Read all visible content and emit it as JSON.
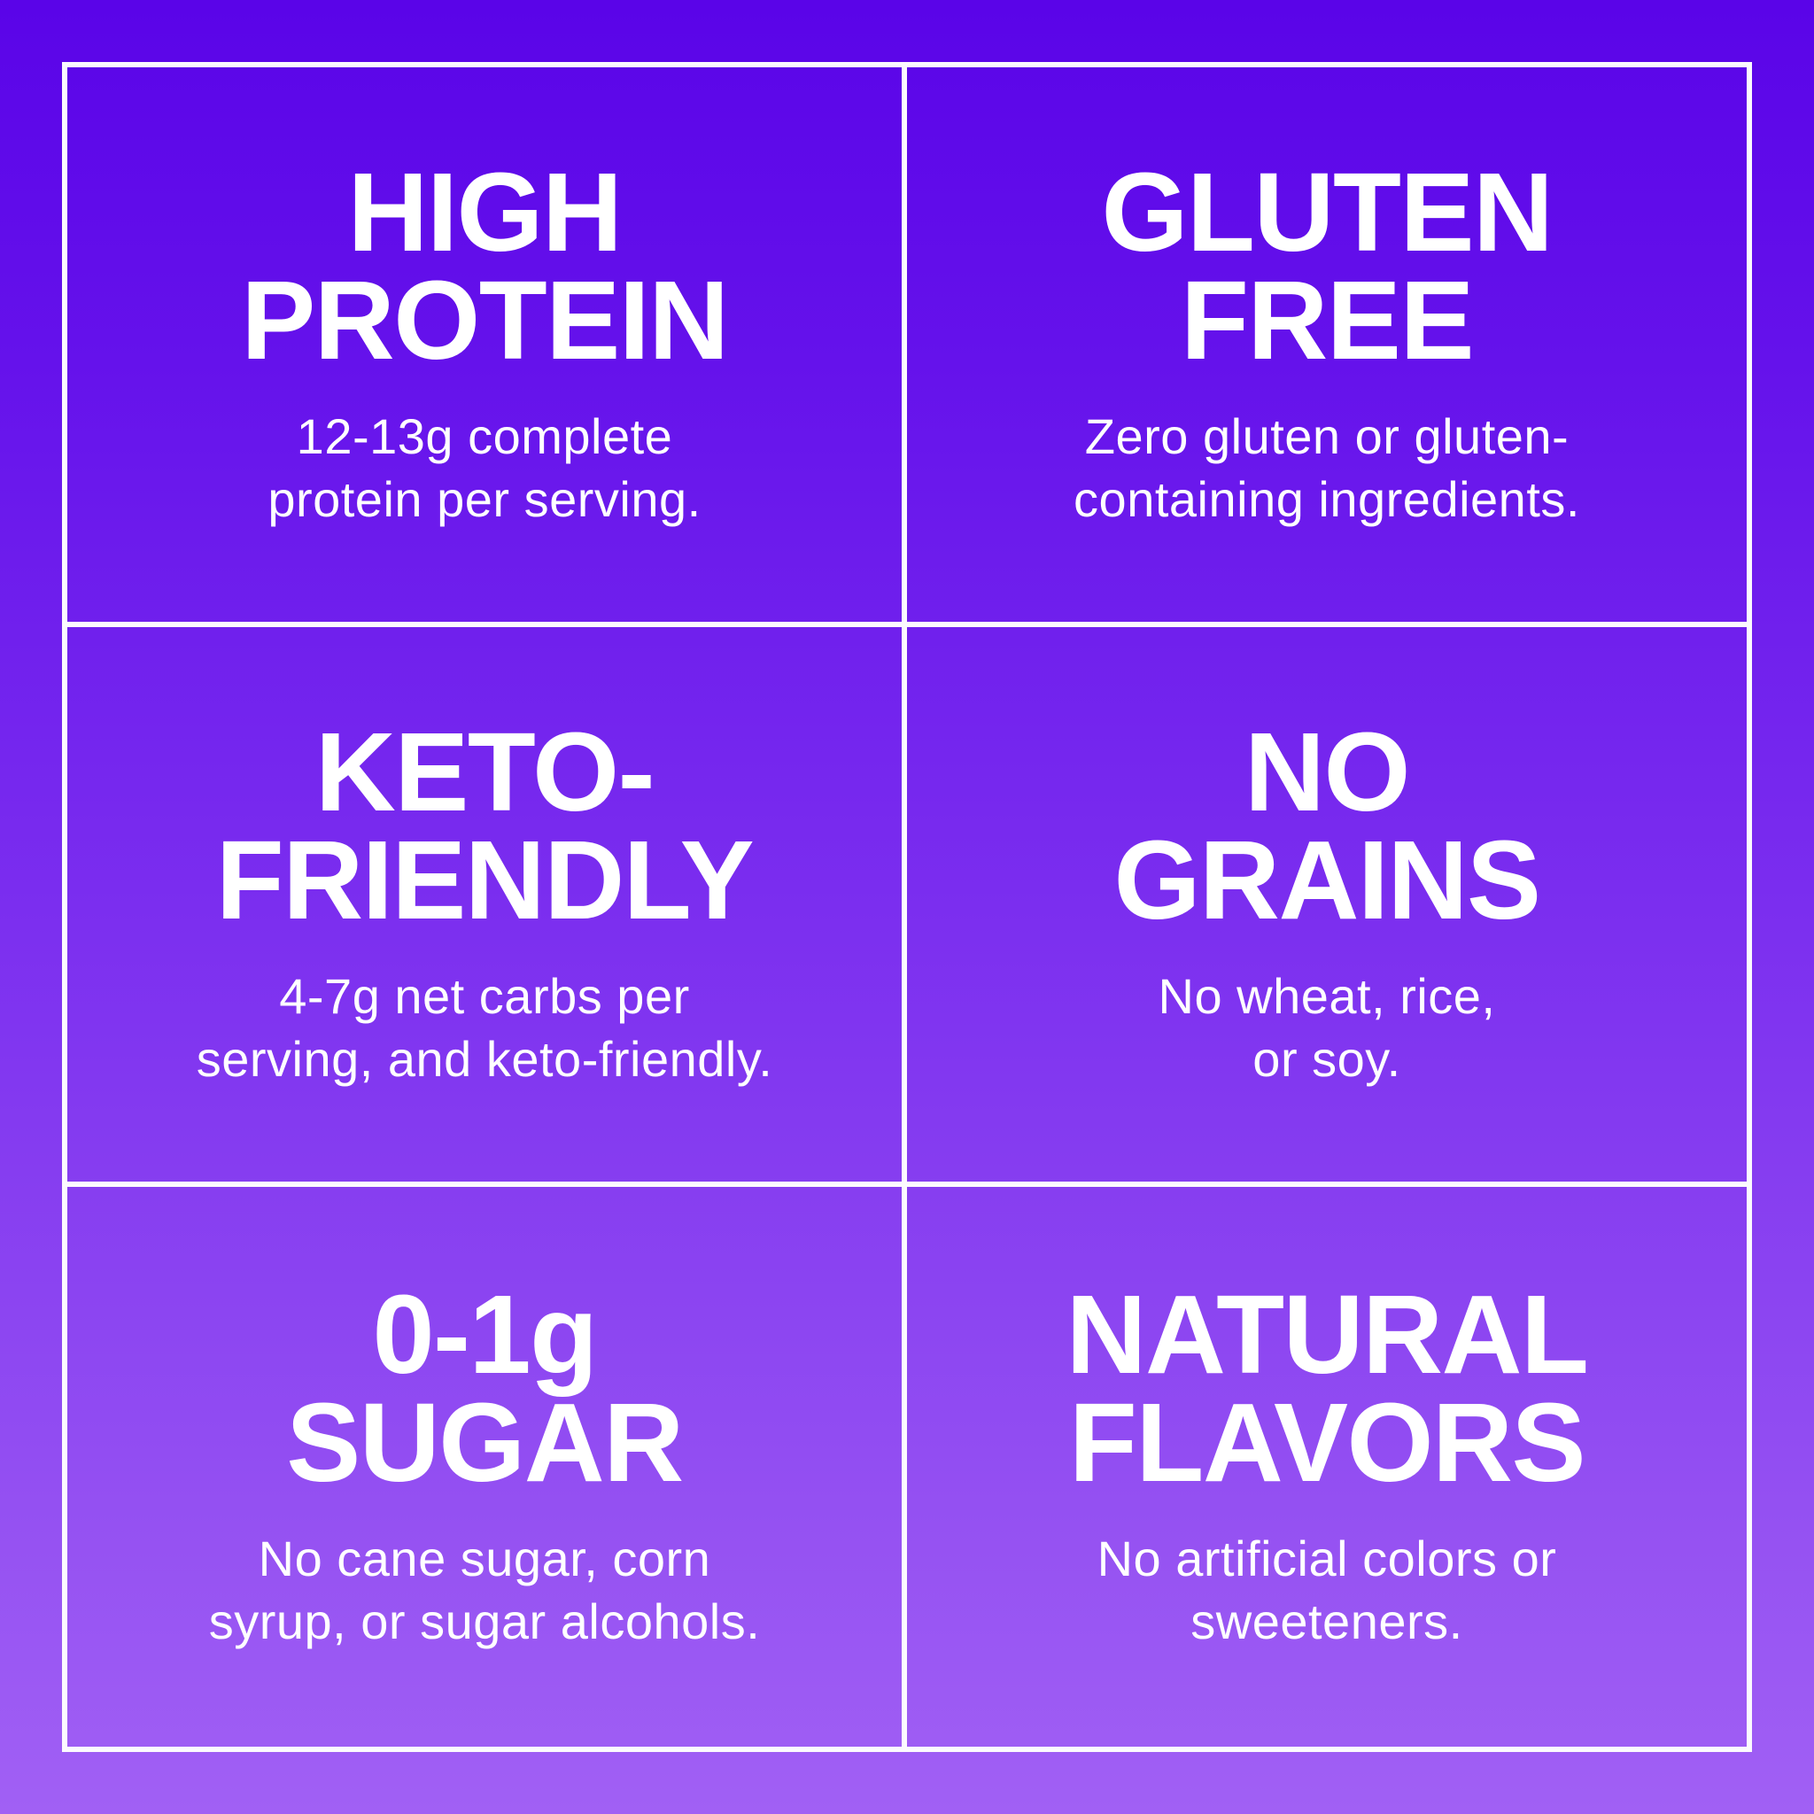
{
  "colors": {
    "background_gradient_top": "#5A04E8",
    "background_gradient_middle": "#7B2EEF",
    "background_gradient_bottom": "#A160F4",
    "grid_line": "#FCFAFE",
    "text": "#FFFFFF"
  },
  "cells": [
    {
      "title_line1": "HIGH",
      "title_line2": "PROTEIN",
      "body_line1": "12-13g complete",
      "body_line2": "protein per serving."
    },
    {
      "title_line1": "GLUTEN",
      "title_line2": "FREE",
      "body_line1": "Zero gluten or gluten-",
      "body_line2": "containing ingredients."
    },
    {
      "title_line1": "KETO-",
      "title_line2": "FRIENDLY",
      "body_line1": "4-7g net carbs per",
      "body_line2": "serving, and keto-friendly."
    },
    {
      "title_line1": "NO",
      "title_line2": "GRAINS",
      "body_line1": "No wheat, rice,",
      "body_line2": "or soy."
    },
    {
      "title_line1": "0-1g",
      "title_line2": "SUGAR",
      "body_line1": "No cane sugar, corn",
      "body_line2": "syrup, or sugar alcohols."
    },
    {
      "title_line1": "NATURAL",
      "title_line2": "FLAVORS",
      "body_line1": "No artificial colors or",
      "body_line2": "sweeteners."
    }
  ]
}
